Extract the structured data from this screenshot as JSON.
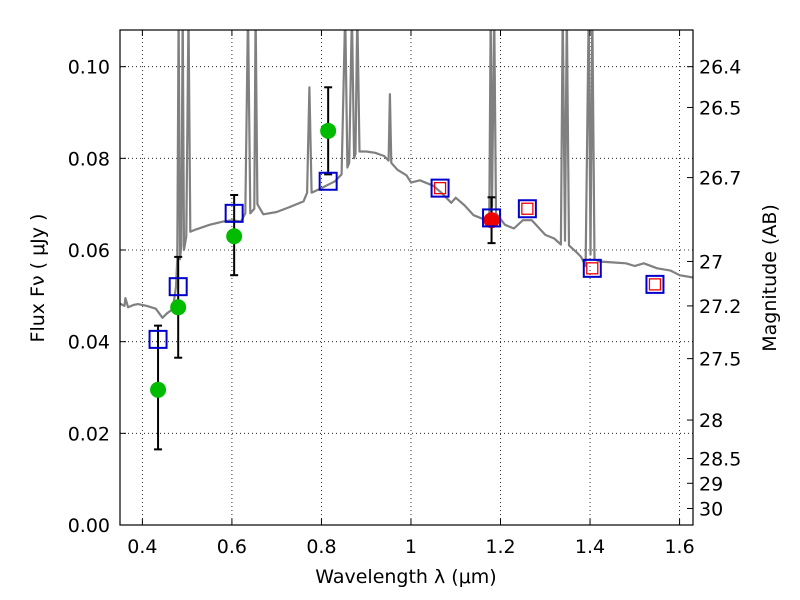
{
  "chart_data": {
    "type": "scatter",
    "xlabel": "Wavelength  λ (μm)",
    "ylabel": "Flux  Fν  ( μJy )",
    "y2label": "Magnitude (AB)",
    "xlim": [
      0.35,
      1.63
    ],
    "ylim": [
      0.0,
      0.108
    ],
    "grid": true,
    "x_ticks": [
      0.4,
      0.6,
      0.8,
      1.0,
      1.2,
      1.4,
      1.6
    ],
    "x_tick_labels": [
      "0.4",
      "0.6",
      "0.8",
      "1",
      "1.2",
      "1.4",
      "1.6"
    ],
    "y_ticks": [
      0.0,
      0.02,
      0.04,
      0.06,
      0.08,
      0.1
    ],
    "y_tick_labels": [
      "0.00",
      "0.02",
      "0.04",
      "0.06",
      "0.08",
      "0.10"
    ],
    "magnitude_ticks": [
      {
        "label": "26.4",
        "flux": 0.1
      },
      {
        "label": "26.5",
        "flux": 0.0911
      },
      {
        "label": "26.7",
        "flux": 0.0758
      },
      {
        "label": "27",
        "flux": 0.0575
      },
      {
        "label": "27.2",
        "flux": 0.0478
      },
      {
        "label": "27.5",
        "flux": 0.0363
      },
      {
        "label": "28",
        "flux": 0.0229
      },
      {
        "label": "28.5",
        "flux": 0.0145
      },
      {
        "label": "29",
        "flux": 0.0091
      },
      {
        "label": "30",
        "flux": 0.0036
      }
    ],
    "series": [
      {
        "name": "Model SED",
        "kind": "line",
        "color": "#808080",
        "points": [
          [
            0.35,
            0.0483
          ],
          [
            0.36,
            0.0478
          ],
          [
            0.362,
            0.0495
          ],
          [
            0.368,
            0.0475
          ],
          [
            0.38,
            0.048
          ],
          [
            0.39,
            0.0482
          ],
          [
            0.41,
            0.0478
          ],
          [
            0.43,
            0.0472
          ],
          [
            0.445,
            0.0452
          ],
          [
            0.455,
            0.0462
          ],
          [
            0.468,
            0.0471
          ],
          [
            0.475,
            0.052
          ],
          [
            0.478,
            0.058
          ],
          [
            0.481,
            0.112
          ],
          [
            0.484,
            0.058
          ],
          [
            0.487,
            0.061
          ],
          [
            0.49,
            0.112
          ],
          [
            0.493,
            0.06
          ],
          [
            0.498,
            0.063
          ],
          [
            0.503,
            0.112
          ],
          [
            0.507,
            0.064
          ],
          [
            0.52,
            0.0645
          ],
          [
            0.55,
            0.0655
          ],
          [
            0.58,
            0.0662
          ],
          [
            0.6,
            0.0665
          ],
          [
            0.62,
            0.0662
          ],
          [
            0.63,
            0.068
          ],
          [
            0.636,
            0.112
          ],
          [
            0.641,
            0.068
          ],
          [
            0.65,
            0.069
          ],
          [
            0.653,
            0.112
          ],
          [
            0.657,
            0.07
          ],
          [
            0.67,
            0.0678
          ],
          [
            0.7,
            0.0683
          ],
          [
            0.73,
            0.0694
          ],
          [
            0.76,
            0.0706
          ],
          [
            0.768,
            0.0725
          ],
          [
            0.773,
            0.0955
          ],
          [
            0.778,
            0.0725
          ],
          [
            0.8,
            0.0735
          ],
          [
            0.83,
            0.075
          ],
          [
            0.845,
            0.0765
          ],
          [
            0.853,
            0.112
          ],
          [
            0.858,
            0.078
          ],
          [
            0.862,
            0.079
          ],
          [
            0.868,
            0.112
          ],
          [
            0.873,
            0.08
          ],
          [
            0.876,
            0.081
          ],
          [
            0.88,
            0.112
          ],
          [
            0.885,
            0.0815
          ],
          [
            0.9,
            0.0815
          ],
          [
            0.92,
            0.0812
          ],
          [
            0.94,
            0.0805
          ],
          [
            0.95,
            0.0795
          ],
          [
            0.953,
            0.094
          ],
          [
            0.956,
            0.079
          ],
          [
            0.97,
            0.0775
          ],
          [
            0.99,
            0.0763
          ],
          [
            1.0,
            0.0747
          ],
          [
            1.02,
            0.0752
          ],
          [
            1.05,
            0.074
          ],
          [
            1.07,
            0.0723
          ],
          [
            1.09,
            0.0703
          ],
          [
            1.1,
            0.0714
          ],
          [
            1.12,
            0.0697
          ],
          [
            1.14,
            0.0676
          ],
          [
            1.16,
            0.0668
          ],
          [
            1.175,
            0.0675
          ],
          [
            1.178,
            0.112
          ],
          [
            1.181,
            0.0695
          ],
          [
            1.186,
            0.112
          ],
          [
            1.19,
            0.068
          ],
          [
            1.21,
            0.0655
          ],
          [
            1.23,
            0.0647
          ],
          [
            1.25,
            0.0665
          ],
          [
            1.27,
            0.0665
          ],
          [
            1.3,
            0.0633
          ],
          [
            1.32,
            0.0625
          ],
          [
            1.335,
            0.0612
          ],
          [
            1.339,
            0.112
          ],
          [
            1.344,
            0.062
          ],
          [
            1.348,
            0.112
          ],
          [
            1.353,
            0.061
          ],
          [
            1.37,
            0.0595
          ],
          [
            1.38,
            0.0585
          ],
          [
            1.39,
            0.0565
          ],
          [
            1.397,
            0.112
          ],
          [
            1.401,
            0.059
          ],
          [
            1.405,
            0.112
          ],
          [
            1.41,
            0.058
          ],
          [
            1.42,
            0.0575
          ],
          [
            1.45,
            0.0573
          ],
          [
            1.48,
            0.0571
          ],
          [
            1.5,
            0.0565
          ],
          [
            1.52,
            0.0571
          ],
          [
            1.55,
            0.056
          ],
          [
            1.58,
            0.0555
          ],
          [
            1.6,
            0.0545
          ],
          [
            1.63,
            0.054
          ]
        ]
      },
      {
        "name": "Observed photometry (green)",
        "kind": "points",
        "color": "#00bb00",
        "points": [
          {
            "x": 0.435,
            "y": 0.0295,
            "yerr": [
              0.0165,
              0.0435
            ]
          },
          {
            "x": 0.48,
            "y": 0.0475,
            "yerr": [
              0.0365,
              0.0585
            ]
          },
          {
            "x": 0.605,
            "y": 0.063,
            "yerr": [
              0.0545,
              0.072
            ]
          },
          {
            "x": 0.815,
            "y": 0.086,
            "yerr": [
              0.0765,
              0.0955
            ]
          }
        ]
      },
      {
        "name": "Observed photometry (red)",
        "kind": "points",
        "color": "#ee0000",
        "points": [
          {
            "x": 1.18,
            "y": 0.0665,
            "yerr": [
              0.0615,
              0.0715
            ]
          }
        ]
      },
      {
        "name": "Model synthetic photometry (blue squares)",
        "kind": "squares",
        "color": "#0000cc",
        "points": [
          [
            0.435,
            0.0405
          ],
          [
            0.48,
            0.052
          ],
          [
            0.605,
            0.068
          ],
          [
            0.815,
            0.075
          ],
          [
            1.065,
            0.0735
          ],
          [
            1.18,
            0.067
          ],
          [
            1.26,
            0.069
          ],
          [
            1.405,
            0.056
          ],
          [
            1.545,
            0.0525
          ]
        ]
      },
      {
        "name": "Predicted (red inner squares)",
        "kind": "inner-squares",
        "color": "#ee0000",
        "points": [
          [
            1.065,
            0.0735
          ],
          [
            1.26,
            0.069
          ],
          [
            1.405,
            0.056
          ],
          [
            1.545,
            0.0525
          ]
        ]
      }
    ]
  }
}
